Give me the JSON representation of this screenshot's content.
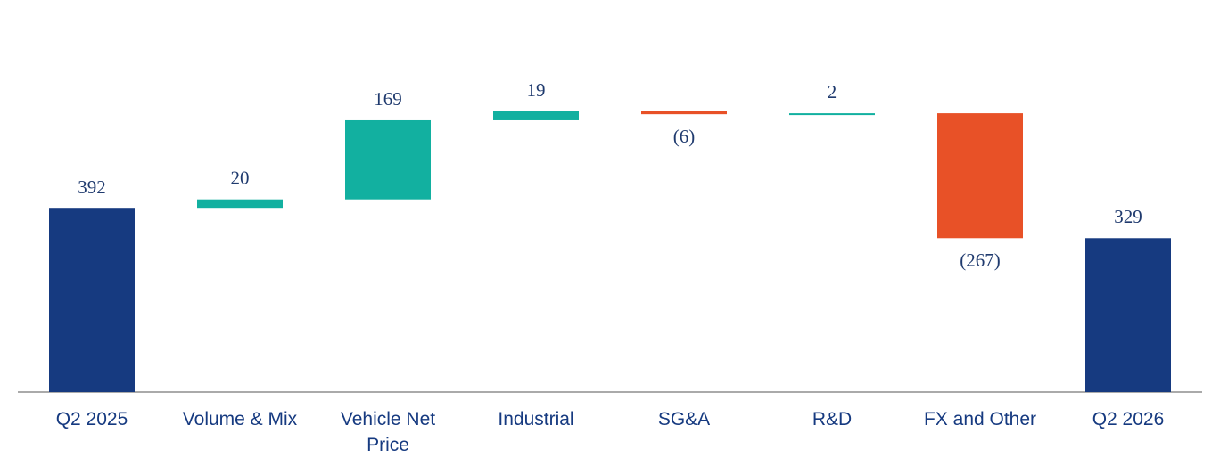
{
  "chart_data": {
    "type": "waterfall",
    "categories": [
      "Q2 2025",
      "Volume & Mix",
      "Vehicle Net Price",
      "Industrial",
      "SG&A",
      "R&D",
      "FX and Other",
      "Q2 2026"
    ],
    "values": [
      392,
      20,
      169,
      19,
      -6,
      2,
      -267,
      329
    ],
    "value_labels": [
      "392",
      "20",
      "169",
      "19",
      "(6)",
      "2",
      "(267)",
      "329"
    ],
    "colors": [
      "#163a80",
      "#12b0a0",
      "#12b0a0",
      "#12b0a0",
      "#e85127",
      "#12b0a0",
      "#e85127",
      "#163a80"
    ],
    "ylim": [
      0,
      800
    ]
  }
}
